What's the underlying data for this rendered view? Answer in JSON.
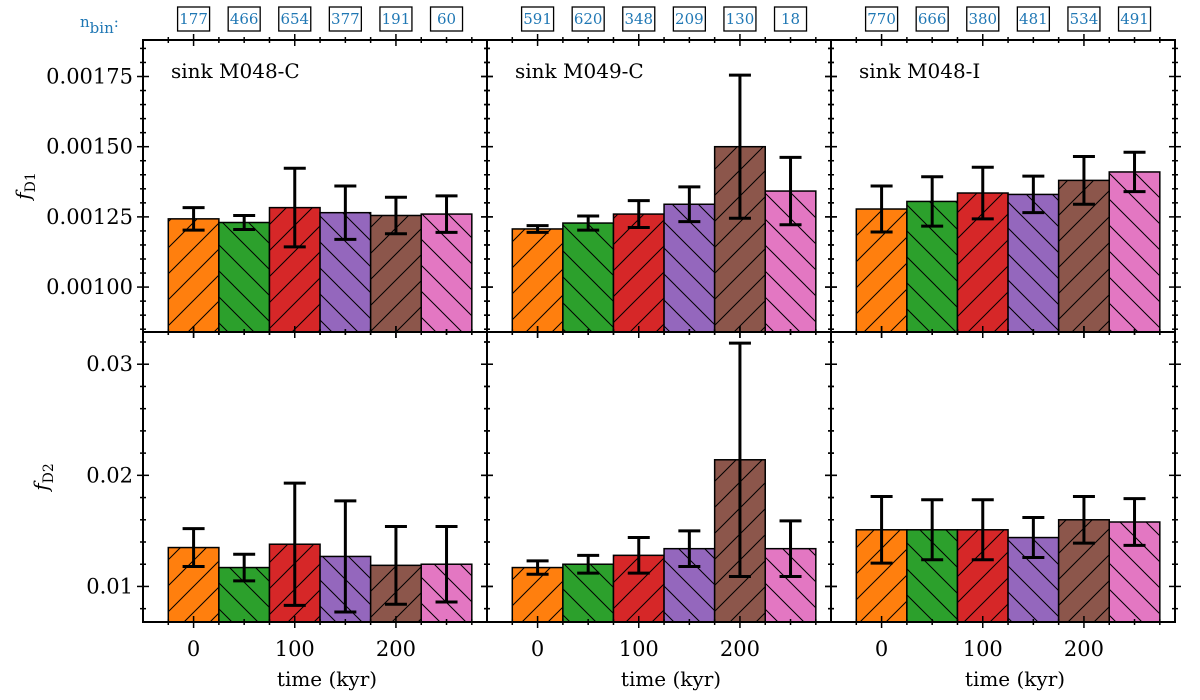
{
  "nbin_label": "n",
  "nbin_sub": "bin",
  "nbin_colon": ":",
  "colors": {
    "accent": "#1f77b4",
    "series": [
      "#ff7f0e",
      "#2ca02c",
      "#d62728",
      "#9467bd",
      "#8c564b",
      "#e377c2"
    ]
  },
  "chart_data": [
    {
      "type": "bar",
      "panel": "top-left",
      "annotation": "sink M048-C",
      "ylabel": "f_D1",
      "ylabel_main": "f",
      "ylabel_sub": "D1",
      "ylim": [
        0.00084,
        0.00188
      ],
      "yticks": [
        0.001,
        0.00125,
        0.0015,
        0.00175
      ],
      "ytick_labels": [
        "0.00100",
        "0.00125",
        "0.00150",
        "0.00175"
      ],
      "x": [
        0,
        50,
        100,
        150,
        200,
        250
      ],
      "values": [
        0.001243,
        0.00123,
        0.001283,
        0.001265,
        0.001255,
        0.00126
      ],
      "errors": [
        4e-05,
        2.5e-05,
        0.00014,
        9.5e-05,
        6.5e-05,
        6.5e-05
      ],
      "hatch": [
        "/",
        "\\",
        "/",
        "\\",
        "/",
        "\\"
      ]
    },
    {
      "type": "bar",
      "panel": "top-middle",
      "annotation": "sink M049-C",
      "ylim": [
        0.00084,
        0.00188
      ],
      "yticks": [
        0.001,
        0.00125,
        0.0015,
        0.00175
      ],
      "x": [
        0,
        50,
        100,
        150,
        200,
        250
      ],
      "values": [
        0.001207,
        0.001228,
        0.00126,
        0.001295,
        0.0015,
        0.001342
      ],
      "errors": [
        1.2e-05,
        2.5e-05,
        4.8e-05,
        6.2e-05,
        0.000255,
        0.00012
      ],
      "hatch": [
        "/",
        "\\",
        "/",
        "\\",
        "/",
        "\\"
      ]
    },
    {
      "type": "bar",
      "panel": "top-right",
      "annotation": "sink M048-I",
      "ylim": [
        0.00084,
        0.00188
      ],
      "yticks": [
        0.001,
        0.00125,
        0.0015,
        0.00175
      ],
      "x": [
        0,
        50,
        100,
        150,
        200,
        250
      ],
      "values": [
        0.001278,
        0.001305,
        0.001335,
        0.00133,
        0.00138,
        0.00141
      ],
      "errors": [
        8.2e-05,
        8.8e-05,
        9.2e-05,
        6.5e-05,
        8.5e-05,
        7e-05
      ],
      "hatch": [
        "/",
        "\\",
        "/",
        "\\",
        "/",
        "\\"
      ]
    },
    {
      "type": "bar",
      "panel": "bottom-left",
      "ylabel": "f_D2",
      "ylabel_main": "f",
      "ylabel_sub": "D2",
      "xlabel": "time (kyr)",
      "ylim": [
        0.0068,
        0.0329
      ],
      "yticks": [
        0.01,
        0.02,
        0.03
      ],
      "ytick_labels": [
        "0.01",
        "0.02",
        "0.03"
      ],
      "xticks": [
        0,
        100,
        200
      ],
      "xtick_labels": [
        "0",
        "100",
        "200"
      ],
      "nbin": [
        "177",
        "466",
        "654",
        "377",
        "191",
        "60"
      ],
      "x": [
        0,
        50,
        100,
        150,
        200,
        250
      ],
      "values": [
        0.0135,
        0.0117,
        0.0138,
        0.0127,
        0.0119,
        0.012
      ],
      "errors": [
        0.0017,
        0.0012,
        0.0055,
        0.005,
        0.0035,
        0.0034
      ],
      "hatch": [
        "/",
        "\\",
        "/",
        "\\",
        "/",
        "\\"
      ]
    },
    {
      "type": "bar",
      "panel": "bottom-middle",
      "xlabel": "time (kyr)",
      "ylim": [
        0.0068,
        0.0329
      ],
      "yticks": [
        0.01,
        0.02,
        0.03
      ],
      "xticks": [
        0,
        100,
        200
      ],
      "xtick_labels": [
        "0",
        "100",
        "200"
      ],
      "nbin": [
        "591",
        "620",
        "348",
        "209",
        "130",
        "18"
      ],
      "x": [
        0,
        50,
        100,
        150,
        200,
        250
      ],
      "values": [
        0.0117,
        0.012,
        0.0128,
        0.0134,
        0.0214,
        0.0134
      ],
      "errors": [
        0.0006,
        0.0008,
        0.0016,
        0.0016,
        0.0105,
        0.0025
      ],
      "hatch": [
        "/",
        "\\",
        "/",
        "\\",
        "/",
        "\\"
      ]
    },
    {
      "type": "bar",
      "panel": "bottom-right",
      "xlabel": "time (kyr)",
      "ylim": [
        0.0068,
        0.0329
      ],
      "yticks": [
        0.01,
        0.02,
        0.03
      ],
      "xticks": [
        0,
        100,
        200
      ],
      "xtick_labels": [
        "0",
        "100",
        "200"
      ],
      "nbin": [
        "770",
        "666",
        "380",
        "481",
        "534",
        "491"
      ],
      "x": [
        0,
        50,
        100,
        150,
        200,
        250
      ],
      "values": [
        0.0151,
        0.0151,
        0.0151,
        0.0144,
        0.016,
        0.0158
      ],
      "errors": [
        0.003,
        0.0027,
        0.0027,
        0.0018,
        0.0021,
        0.0021
      ],
      "hatch": [
        "/",
        "\\",
        "/",
        "\\",
        "/",
        "\\"
      ]
    }
  ]
}
